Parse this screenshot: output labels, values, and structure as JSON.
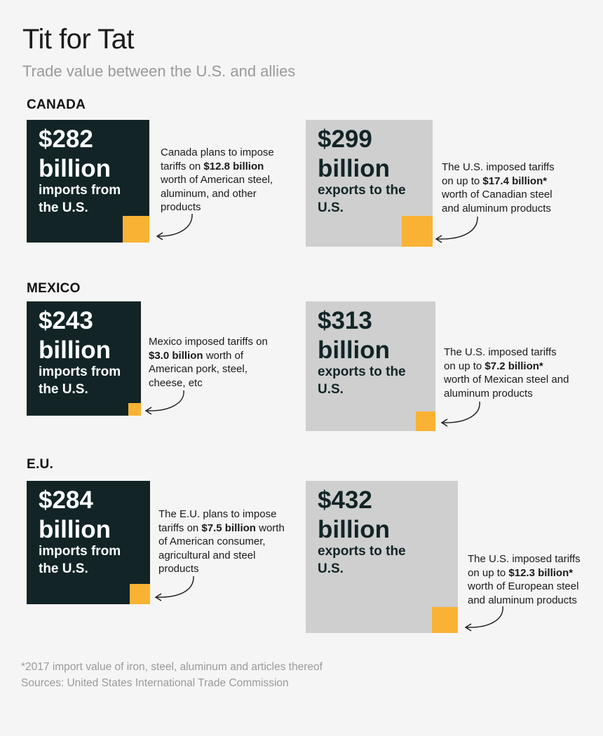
{
  "header": {
    "title": "Tit for Tat",
    "subtitle": "Trade value between the U.S. and allies"
  },
  "chart_data": {
    "type": "area",
    "units": "billion",
    "countries": [
      {
        "name": "CANADA",
        "imports": {
          "amount": "$282",
          "unit": "billion",
          "label": "imports from the U.S.",
          "value": 282,
          "tariff_value": 12.8
        },
        "exports": {
          "amount": "$299",
          "unit": "billion",
          "label": "exports to the U.S.",
          "value": 299,
          "tariff_value": 17.4
        },
        "import_note": {
          "pre": "Canada plans to impose tariffs on ",
          "bold": "$12.8 billion",
          "post": " worth of American steel, aluminum, and other products"
        },
        "export_note": {
          "pre": "The U.S. imposed tariffs on up to ",
          "bold": "$17.4 billion*",
          "post": " worth of Canadian steel and aluminum products"
        }
      },
      {
        "name": "MEXICO",
        "imports": {
          "amount": "$243",
          "unit": "billion",
          "label": "imports from the U.S.",
          "value": 243,
          "tariff_value": 3.0
        },
        "exports": {
          "amount": "$313",
          "unit": "billion",
          "label": "exports to the U.S.",
          "value": 313,
          "tariff_value": 7.2
        },
        "import_note": {
          "pre": "Mexico imposed tariffs on ",
          "bold": "$3.0 billion",
          "post": " worth of American pork, steel, cheese, etc"
        },
        "export_note": {
          "pre": "The U.S. imposed tariffs on up to ",
          "bold": "$7.2 billion*",
          "post": " worth of Mexican steel and aluminum products"
        }
      },
      {
        "name": "E.U.",
        "imports": {
          "amount": "$284",
          "unit": "billion",
          "label": "imports from the U.S.",
          "value": 284,
          "tariff_value": 7.5
        },
        "exports": {
          "amount": "$432",
          "unit": "billion",
          "label": "exports to the U.S.",
          "value": 432,
          "tariff_value": 12.3
        },
        "import_note": {
          "pre": "The E.U. plans to impose tariffs on ",
          "bold": "$7.5 billion",
          "post": " worth of American consumer, agricultural and steel products"
        },
        "export_note": {
          "pre": "The U.S. imposed tariffs on up to ",
          "bold": "$12.3 billion*",
          "post": " worth of European steel and aluminum products"
        }
      }
    ],
    "colors": {
      "imports": "#122426",
      "exports": "#cfcfcf",
      "tariffs": "#f9b233",
      "text_light": "#ffffff",
      "text_dark": "#122426"
    }
  },
  "footer": {
    "footnote": "*2017 import value of iron, steel, aluminum and articles thereof",
    "sources": "Sources: United States International Trade Commission"
  }
}
